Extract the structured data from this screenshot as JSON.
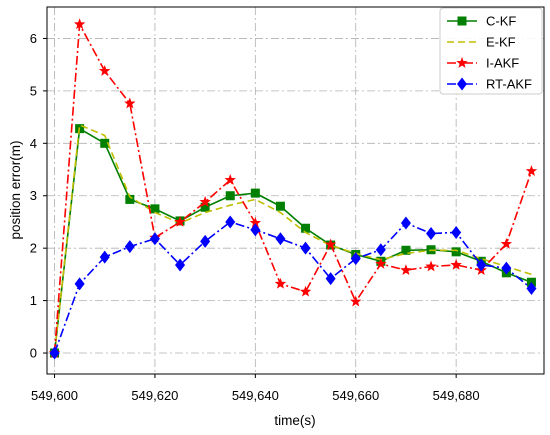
{
  "chart_data": {
    "type": "line",
    "title": "",
    "xlabel": "time(s)",
    "ylabel": "position error(m)",
    "xlim": [
      549598.5,
      549697.5
    ],
    "ylim": [
      -0.4,
      6.6
    ],
    "xticks": [
      549600,
      549620,
      549640,
      549660,
      549680
    ],
    "xtick_labels": [
      "549,600",
      "549,620",
      "549,640",
      "549,660",
      "549,680"
    ],
    "yticks": [
      0,
      1,
      2,
      3,
      4,
      5,
      6
    ],
    "ytick_labels": [
      "0",
      "1",
      "2",
      "3",
      "4",
      "5",
      "6"
    ],
    "grid": true,
    "legend_position": "top-right",
    "series": [
      {
        "name": "C-KF",
        "color": "#007f00",
        "dash": "solid",
        "marker": "square",
        "x": [
          549600,
          549605,
          549610,
          549615,
          549620,
          549625,
          549630,
          549635,
          549640,
          549645,
          549650,
          549655,
          549660,
          549665,
          549670,
          549675,
          549680,
          549685,
          549690,
          549695
        ],
        "y": [
          0.0,
          4.28,
          4.0,
          2.93,
          2.75,
          2.52,
          2.78,
          3.0,
          3.05,
          2.8,
          2.38,
          2.06,
          1.88,
          1.75,
          1.96,
          1.97,
          1.93,
          1.75,
          1.53,
          1.35
        ]
      },
      {
        "name": "E-KF",
        "color": "#bfbf00",
        "dash": "dash",
        "marker": "none",
        "x": [
          549600,
          549605,
          549610,
          549615,
          549620,
          549625,
          549630,
          549635,
          549640,
          549645,
          549650,
          549655,
          549660,
          549665,
          549670,
          549675,
          549680,
          549685,
          549690,
          549695
        ],
        "y": [
          0.0,
          4.35,
          4.15,
          2.98,
          2.68,
          2.48,
          2.68,
          2.82,
          2.93,
          2.68,
          2.3,
          2.05,
          1.9,
          1.78,
          1.9,
          1.96,
          1.96,
          1.8,
          1.65,
          1.5
        ]
      },
      {
        "name": "I-AKF",
        "color": "#ff0000",
        "dash": "dashdot",
        "marker": "star",
        "x": [
          549600,
          549605,
          549610,
          549615,
          549620,
          549625,
          549630,
          549635,
          549640,
          549645,
          549650,
          549655,
          549660,
          549665,
          549670,
          549675,
          549680,
          549685,
          549690,
          549695
        ],
        "y": [
          0.0,
          6.27,
          5.38,
          4.76,
          2.2,
          2.5,
          2.88,
          3.3,
          2.48,
          1.32,
          1.17,
          2.07,
          0.98,
          1.7,
          1.58,
          1.65,
          1.68,
          1.58,
          2.08,
          3.47
        ]
      },
      {
        "name": "RT-AKF",
        "color": "#0000ff",
        "dash": "dashdot",
        "marker": "diamond",
        "x": [
          549600,
          549605,
          549610,
          549615,
          549620,
          549625,
          549630,
          549635,
          549640,
          549645,
          549650,
          549655,
          549660,
          549665,
          549670,
          549675,
          549680,
          549685,
          549690,
          549695
        ],
        "y": [
          0.0,
          1.32,
          1.83,
          2.03,
          2.18,
          1.68,
          2.13,
          2.5,
          2.35,
          2.18,
          2.0,
          1.42,
          1.8,
          1.97,
          2.48,
          2.28,
          2.3,
          1.68,
          1.62,
          1.23
        ]
      }
    ]
  }
}
